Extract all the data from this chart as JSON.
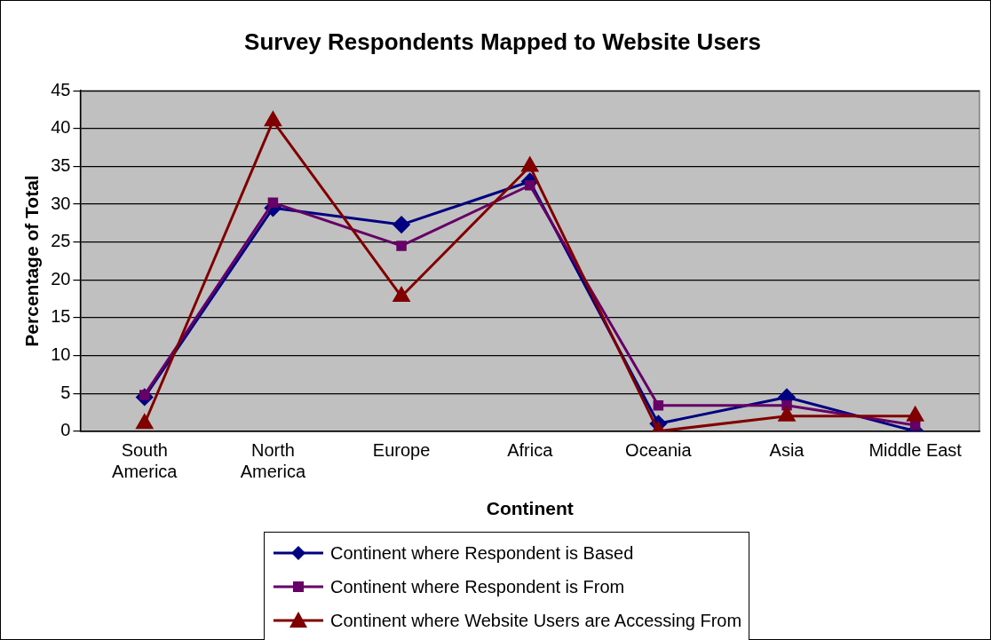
{
  "chart_data": {
    "type": "line",
    "title": "Survey Respondents Mapped to Website Users",
    "xlabel": "Continent",
    "ylabel": "Percentage of Total",
    "categories": [
      "South America",
      "North America",
      "Europe",
      "Africa",
      "Oceania",
      "Asia",
      "Middle East"
    ],
    "series": [
      {
        "name": "Continent where Respondent is Based",
        "color": "#000080",
        "marker": "diamond",
        "values": [
          4.5,
          29.5,
          27.3,
          33,
          1,
          4.5,
          0
        ]
      },
      {
        "name": "Continent where Respondent is From",
        "color": "#660066",
        "marker": "square",
        "values": [
          4.8,
          30.2,
          24.5,
          32.5,
          3.4,
          3.4,
          0.8
        ]
      },
      {
        "name": "Continent where Website Users are Accessing From",
        "color": "#800000",
        "marker": "triangle",
        "values": [
          1,
          41,
          17.8,
          35,
          0,
          2,
          2
        ]
      }
    ],
    "ylim": [
      0,
      45
    ],
    "yticks": [
      0,
      5,
      10,
      15,
      20,
      25,
      30,
      35,
      40,
      45
    ],
    "grid": "y",
    "legend": "bottom",
    "line_style": "solid"
  }
}
